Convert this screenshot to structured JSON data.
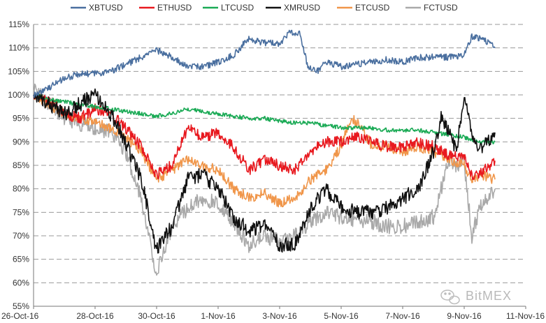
{
  "chart_data": {
    "type": "line",
    "title": "",
    "xlabel": "",
    "ylabel": "",
    "x_tick_labels": [
      "26-Oct-16",
      "28-Oct-16",
      "30-Oct-16",
      "1-Nov-16",
      "3-Nov-16",
      "5-Nov-16",
      "7-Nov-16",
      "9-Nov-16",
      "11-Nov-16"
    ],
    "x_tick_dates": [
      "2016-10-26",
      "2016-10-28",
      "2016-10-30",
      "2016-11-01",
      "2016-11-03",
      "2016-11-05",
      "2016-11-07",
      "2016-11-09",
      "2016-11-11"
    ],
    "xlim": [
      "2016-10-26",
      "2016-11-11"
    ],
    "y_tick_labels": [
      "55%",
      "60%",
      "65%",
      "70%",
      "75%",
      "80%",
      "85%",
      "90%",
      "95%",
      "100%",
      "105%",
      "110%",
      "115%"
    ],
    "ylim": [
      55,
      115
    ],
    "grid": "horizontal dashed",
    "legend_position": "top",
    "watermark": "BitMEX",
    "series": [
      {
        "name": "XBTUSD",
        "color": "#4a6f9f",
        "noise": 0.7,
        "points": [
          [
            "2016-10-26 00:00",
            100
          ],
          [
            "2016-10-26 12:00",
            101.5
          ],
          [
            "2016-10-27 00:00",
            103.5
          ],
          [
            "2016-10-27 12:00",
            104.5
          ],
          [
            "2016-10-28 00:00",
            104.5
          ],
          [
            "2016-10-28 12:00",
            105
          ],
          [
            "2016-10-29 00:00",
            106.5
          ],
          [
            "2016-10-29 12:00",
            108
          ],
          [
            "2016-10-30 00:00",
            109.5
          ],
          [
            "2016-10-30 12:00",
            108
          ],
          [
            "2016-10-31 00:00",
            106
          ],
          [
            "2016-10-31 12:00",
            106
          ],
          [
            "2016-11-01 00:00",
            107
          ],
          [
            "2016-11-01 12:00",
            108.5
          ],
          [
            "2016-11-02 00:00",
            112
          ],
          [
            "2016-11-02 12:00",
            111
          ],
          [
            "2016-11-03 00:00",
            111
          ],
          [
            "2016-11-03 08:00",
            113.5
          ],
          [
            "2016-11-03 16:00",
            113
          ],
          [
            "2016-11-03 22:00",
            106
          ],
          [
            "2016-11-04 06:00",
            105
          ],
          [
            "2016-11-04 12:00",
            107
          ],
          [
            "2016-11-05 00:00",
            106
          ],
          [
            "2016-11-05 12:00",
            106.5
          ],
          [
            "2016-11-06 00:00",
            107
          ],
          [
            "2016-11-06 12:00",
            107.5
          ],
          [
            "2016-11-07 00:00",
            107
          ],
          [
            "2016-11-07 12:00",
            108
          ],
          [
            "2016-11-08 00:00",
            108
          ],
          [
            "2016-11-08 12:00",
            108
          ],
          [
            "2016-11-09 00:00",
            108.5
          ],
          [
            "2016-11-09 06:00",
            112.5
          ],
          [
            "2016-11-09 12:00",
            112
          ],
          [
            "2016-11-09 20:00",
            111
          ],
          [
            "2016-11-10 00:00",
            110
          ]
        ]
      },
      {
        "name": "ETHUSD",
        "color": "#e8191f",
        "noise": 1.2,
        "points": [
          [
            "2016-10-26 00:00",
            100
          ],
          [
            "2016-10-26 12:00",
            99
          ],
          [
            "2016-10-27 00:00",
            96
          ],
          [
            "2016-10-27 12:00",
            95
          ],
          [
            "2016-10-28 00:00",
            97
          ],
          [
            "2016-10-28 12:00",
            96
          ],
          [
            "2016-10-29 00:00",
            93
          ],
          [
            "2016-10-29 12:00",
            89
          ],
          [
            "2016-10-30 00:00",
            83
          ],
          [
            "2016-10-30 12:00",
            85
          ],
          [
            "2016-10-31 00:00",
            93
          ],
          [
            "2016-10-31 12:00",
            91
          ],
          [
            "2016-11-01 00:00",
            92
          ],
          [
            "2016-11-01 12:00",
            89
          ],
          [
            "2016-11-02 00:00",
            84
          ],
          [
            "2016-11-02 12:00",
            86
          ],
          [
            "2016-11-03 00:00",
            85
          ],
          [
            "2016-11-03 12:00",
            84
          ],
          [
            "2016-11-04 00:00",
            88
          ],
          [
            "2016-11-04 12:00",
            90
          ],
          [
            "2016-11-05 00:00",
            90
          ],
          [
            "2016-11-05 12:00",
            91
          ],
          [
            "2016-11-06 00:00",
            90
          ],
          [
            "2016-11-06 12:00",
            89
          ],
          [
            "2016-11-07 00:00",
            89
          ],
          [
            "2016-11-07 12:00",
            90
          ],
          [
            "2016-11-08 00:00",
            89
          ],
          [
            "2016-11-08 12:00",
            87
          ],
          [
            "2016-11-09 00:00",
            87
          ],
          [
            "2016-11-09 06:00",
            83
          ],
          [
            "2016-11-09 12:00",
            83
          ],
          [
            "2016-11-10 00:00",
            86
          ]
        ]
      },
      {
        "name": "LTCUSD",
        "color": "#1aaa55",
        "noise": 0.45,
        "points": [
          [
            "2016-10-26 00:00",
            100
          ],
          [
            "2016-10-26 12:00",
            99
          ],
          [
            "2016-10-27 00:00",
            98.5
          ],
          [
            "2016-10-27 12:00",
            98
          ],
          [
            "2016-10-28 00:00",
            97.5
          ],
          [
            "2016-10-28 12:00",
            97
          ],
          [
            "2016-10-29 00:00",
            96.5
          ],
          [
            "2016-10-29 12:00",
            96
          ],
          [
            "2016-10-30 00:00",
            95.5
          ],
          [
            "2016-10-30 12:00",
            96
          ],
          [
            "2016-10-31 00:00",
            97
          ],
          [
            "2016-10-31 12:00",
            96.5
          ],
          [
            "2016-11-01 00:00",
            96
          ],
          [
            "2016-11-01 12:00",
            95.5
          ],
          [
            "2016-11-02 00:00",
            95
          ],
          [
            "2016-11-02 12:00",
            95
          ],
          [
            "2016-11-03 00:00",
            94.5
          ],
          [
            "2016-11-03 12:00",
            94
          ],
          [
            "2016-11-04 00:00",
            94
          ],
          [
            "2016-11-04 12:00",
            93.5
          ],
          [
            "2016-11-05 00:00",
            93
          ],
          [
            "2016-11-05 12:00",
            93
          ],
          [
            "2016-11-06 00:00",
            93
          ],
          [
            "2016-11-06 12:00",
            92.5
          ],
          [
            "2016-11-07 00:00",
            92.5
          ],
          [
            "2016-11-07 12:00",
            92.5
          ],
          [
            "2016-11-08 00:00",
            92
          ],
          [
            "2016-11-08 12:00",
            91.5
          ],
          [
            "2016-11-09 00:00",
            91
          ],
          [
            "2016-11-09 12:00",
            90
          ],
          [
            "2016-11-10 00:00",
            90
          ]
        ]
      },
      {
        "name": "XMRUSD",
        "color": "#111111",
        "noise": 1.6,
        "points": [
          [
            "2016-10-26 00:00",
            100
          ],
          [
            "2016-10-26 12:00",
            98
          ],
          [
            "2016-10-27 00:00",
            96
          ],
          [
            "2016-10-27 12:00",
            98
          ],
          [
            "2016-10-28 00:00",
            100
          ],
          [
            "2016-10-28 12:00",
            96
          ],
          [
            "2016-10-29 00:00",
            90
          ],
          [
            "2016-10-29 12:00",
            82
          ],
          [
            "2016-10-30 00:00",
            67
          ],
          [
            "2016-10-30 12:00",
            72
          ],
          [
            "2016-10-31 00:00",
            82
          ],
          [
            "2016-10-31 12:00",
            83
          ],
          [
            "2016-11-01 00:00",
            80
          ],
          [
            "2016-11-01 12:00",
            74
          ],
          [
            "2016-11-02 00:00",
            71
          ],
          [
            "2016-11-02 12:00",
            72
          ],
          [
            "2016-11-03 00:00",
            68
          ],
          [
            "2016-11-03 12:00",
            68
          ],
          [
            "2016-11-04 00:00",
            76
          ],
          [
            "2016-11-04 12:00",
            80
          ],
          [
            "2016-11-05 00:00",
            76
          ],
          [
            "2016-11-05 12:00",
            75
          ],
          [
            "2016-11-06 00:00",
            75
          ],
          [
            "2016-11-06 12:00",
            76
          ],
          [
            "2016-11-07 00:00",
            78
          ],
          [
            "2016-11-07 12:00",
            80
          ],
          [
            "2016-11-08 00:00",
            88
          ],
          [
            "2016-11-08 06:00",
            95
          ],
          [
            "2016-11-08 12:00",
            92
          ],
          [
            "2016-11-08 18:00",
            88
          ],
          [
            "2016-11-09 00:00",
            100
          ],
          [
            "2016-11-09 06:00",
            92
          ],
          [
            "2016-11-09 12:00",
            88
          ],
          [
            "2016-11-10 00:00",
            92
          ]
        ]
      },
      {
        "name": "ETCUSD",
        "color": "#f0964a",
        "noise": 1.1,
        "points": [
          [
            "2016-10-26 00:00",
            100
          ],
          [
            "2016-10-26 12:00",
            98
          ],
          [
            "2016-10-27 00:00",
            96
          ],
          [
            "2016-10-27 12:00",
            95
          ],
          [
            "2016-10-28 00:00",
            94
          ],
          [
            "2016-10-28 12:00",
            93
          ],
          [
            "2016-10-29 00:00",
            91
          ],
          [
            "2016-10-29 12:00",
            88
          ],
          [
            "2016-10-30 00:00",
            82
          ],
          [
            "2016-10-30 12:00",
            84
          ],
          [
            "2016-10-31 00:00",
            86
          ],
          [
            "2016-10-31 12:00",
            85
          ],
          [
            "2016-11-01 00:00",
            84
          ],
          [
            "2016-11-01 12:00",
            80
          ],
          [
            "2016-11-02 00:00",
            78
          ],
          [
            "2016-11-02 12:00",
            79
          ],
          [
            "2016-11-03 00:00",
            77
          ],
          [
            "2016-11-03 12:00",
            78
          ],
          [
            "2016-11-04 00:00",
            82
          ],
          [
            "2016-11-04 12:00",
            84
          ],
          [
            "2016-11-05 00:00",
            89
          ],
          [
            "2016-11-05 08:00",
            95
          ],
          [
            "2016-11-05 16:00",
            93
          ],
          [
            "2016-11-06 00:00",
            89
          ],
          [
            "2016-11-06 12:00",
            89
          ],
          [
            "2016-11-07 00:00",
            88
          ],
          [
            "2016-11-07 12:00",
            89
          ],
          [
            "2016-11-08 00:00",
            88
          ],
          [
            "2016-11-08 12:00",
            86
          ],
          [
            "2016-11-09 00:00",
            85
          ],
          [
            "2016-11-09 06:00",
            82
          ],
          [
            "2016-11-09 12:00",
            83
          ],
          [
            "2016-11-10 00:00",
            82
          ]
        ]
      },
      {
        "name": "FCTUSD",
        "color": "#a9a9a9",
        "noise": 1.7,
        "points": [
          [
            "2016-10-26 00:00",
            101
          ],
          [
            "2016-10-26 12:00",
            98
          ],
          [
            "2016-10-27 00:00",
            95
          ],
          [
            "2016-10-27 12:00",
            94
          ],
          [
            "2016-10-28 00:00",
            93
          ],
          [
            "2016-10-28 12:00",
            92
          ],
          [
            "2016-10-29 00:00",
            88
          ],
          [
            "2016-10-29 12:00",
            78
          ],
          [
            "2016-10-30 00:00",
            62
          ],
          [
            "2016-10-30 12:00",
            72
          ],
          [
            "2016-10-31 00:00",
            76
          ],
          [
            "2016-10-31 12:00",
            78
          ],
          [
            "2016-11-01 00:00",
            77
          ],
          [
            "2016-11-01 12:00",
            73
          ],
          [
            "2016-11-02 00:00",
            68
          ],
          [
            "2016-11-02 12:00",
            70
          ],
          [
            "2016-11-03 00:00",
            69
          ],
          [
            "2016-11-03 12:00",
            70
          ],
          [
            "2016-11-04 00:00",
            73
          ],
          [
            "2016-11-04 12:00",
            75
          ],
          [
            "2016-11-05 00:00",
            74
          ],
          [
            "2016-11-05 12:00",
            73
          ],
          [
            "2016-11-06 00:00",
            73
          ],
          [
            "2016-11-06 12:00",
            72
          ],
          [
            "2016-11-07 00:00",
            72
          ],
          [
            "2016-11-07 12:00",
            73
          ],
          [
            "2016-11-08 00:00",
            74
          ],
          [
            "2016-11-08 06:00",
            80
          ],
          [
            "2016-11-08 12:00",
            86
          ],
          [
            "2016-11-08 18:00",
            85
          ],
          [
            "2016-11-09 00:00",
            86
          ],
          [
            "2016-11-09 06:00",
            70
          ],
          [
            "2016-11-09 12:00",
            76
          ],
          [
            "2016-11-10 00:00",
            80
          ]
        ]
      }
    ]
  }
}
